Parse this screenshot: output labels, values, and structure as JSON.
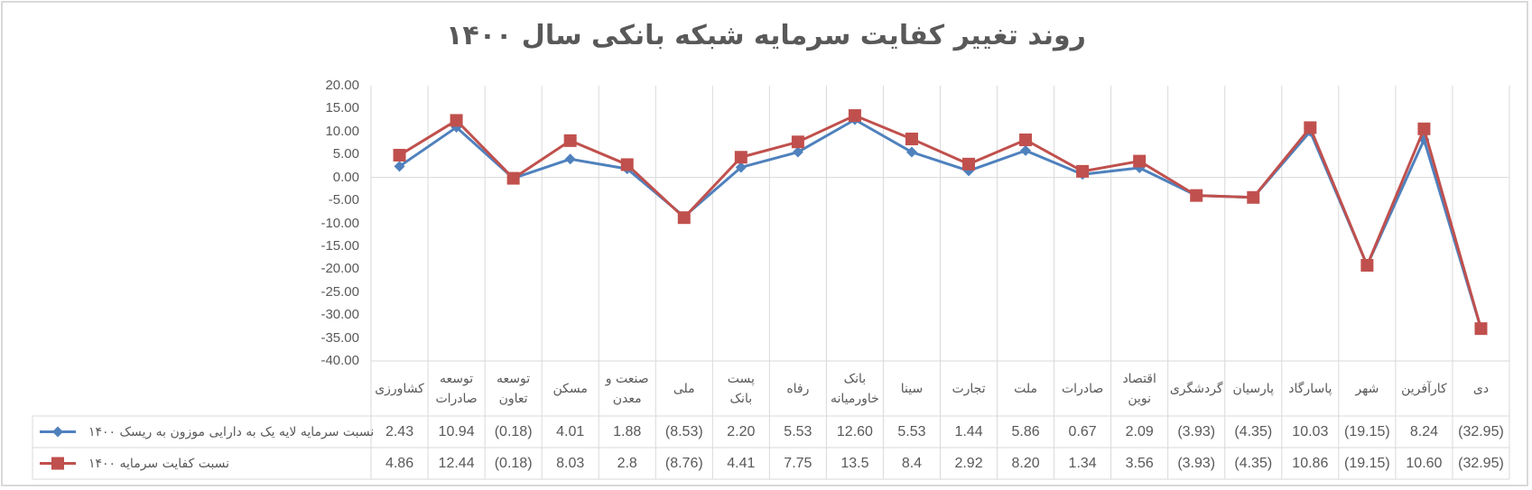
{
  "chart_data": {
    "type": "line",
    "title": "روند تغییر کفایت سرمایه شبکه بانکی سال ۱۴۰۰",
    "xlabel": "",
    "ylabel": "",
    "ylim": [
      -40,
      20
    ],
    "yticks": [
      "20.00",
      "15.00",
      "10.00",
      "5.00",
      "0.00",
      "-5.00",
      "-10.00",
      "-15.00",
      "-20.00",
      "-25.00",
      "-30.00",
      "-35.00",
      "-40.00"
    ],
    "grid": true,
    "legend_position": "bottom-left (data table)",
    "categories": [
      "کشاورزی",
      "توسعه\nصادرات",
      "توسعه\nتعاون",
      "مسکن",
      "صنعت و\nمعدن",
      "ملی",
      "پست\nبانک",
      "رفاه",
      "بانک\nخاورمیانه",
      "سینا",
      "تجارت",
      "ملت",
      "صادرات",
      "اقتصاد\nنوین",
      "گردشگری",
      "پارسیان",
      "پاسارگاد",
      "شهر",
      "کارآفرین",
      "دی"
    ],
    "series": [
      {
        "name": "نسبت سرمایه لایه یک به دارایی موزون به ریسک ۱۴۰۰",
        "color": "#4f81bd",
        "marker": "diamond",
        "values": [
          2.43,
          10.94,
          -0.18,
          4.01,
          1.88,
          -8.53,
          2.2,
          5.53,
          12.6,
          5.53,
          1.44,
          5.86,
          0.67,
          2.09,
          -3.93,
          -4.35,
          10.03,
          -19.15,
          8.24,
          -32.95
        ],
        "labels": [
          "2.43",
          "10.94",
          "(0.18)",
          "4.01",
          "1.88",
          "(8.53)",
          "2.20",
          "5.53",
          "12.60",
          "5.53",
          "1.44",
          "5.86",
          "0.67",
          "2.09",
          "(3.93)",
          "(4.35)",
          "10.03",
          "(19.15)",
          "8.24",
          "(32.95)"
        ]
      },
      {
        "name": "نسبت کفایت سرمایه ۱۴۰۰",
        "color": "#c0504d",
        "marker": "square",
        "values": [
          4.86,
          12.44,
          -0.18,
          8.03,
          2.8,
          -8.76,
          4.41,
          7.75,
          13.5,
          8.4,
          2.92,
          8.2,
          1.34,
          3.56,
          -3.93,
          -4.35,
          10.86,
          -19.15,
          10.6,
          -32.95
        ],
        "labels": [
          "4.86",
          "12.44",
          "(0.18)",
          "8.03",
          "2.8",
          "(8.76)",
          "4.41",
          "7.75",
          "13.5",
          "8.4",
          "2.92",
          "8.20",
          "1.34",
          "3.56",
          "(3.93)",
          "(4.35)",
          "10.86",
          "(19.15)",
          "10.60",
          "(32.95)"
        ]
      }
    ]
  },
  "colors": {
    "grid": "#d9d9d9",
    "text": "#595959",
    "series1": "#4f81bd",
    "series2": "#c0504d"
  }
}
